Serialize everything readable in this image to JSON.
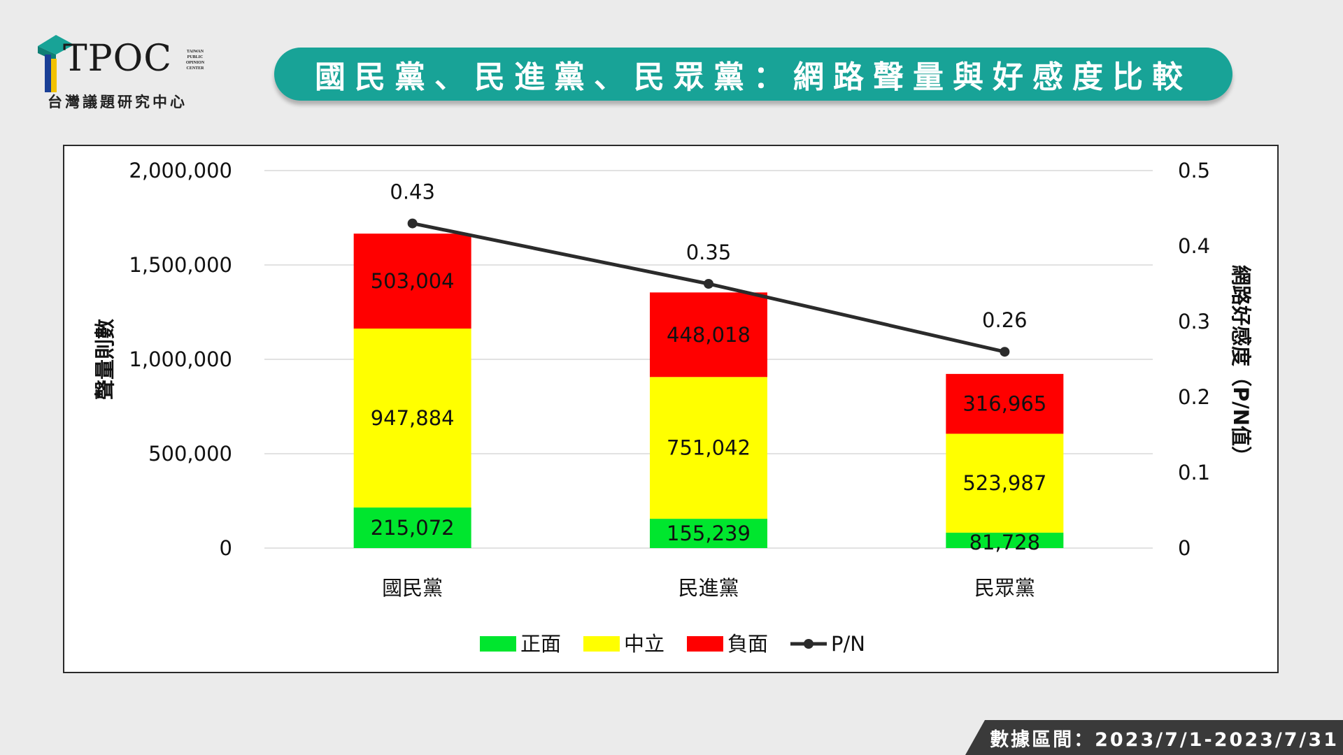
{
  "header": {
    "logo_text": "TPOC",
    "logo_small_lines": [
      "TAIWAN",
      "PUBLIC",
      "OPINION",
      "CENTER"
    ],
    "logo_subtitle": "台灣議題研究中心",
    "title": "國民黨、民進黨、民眾黨：網路聲量與好感度比較"
  },
  "footer": {
    "date_range": "數據區間：2023/7/1-2023/7/31"
  },
  "colors": {
    "positive": "#00e62e",
    "neutral": "#ffff00",
    "negative": "#ff0000",
    "line": "#2b2b2b",
    "banner": "#18a397"
  },
  "chart_data": {
    "type": "bar",
    "stacked": true,
    "categories": [
      "國民黨",
      "民進黨",
      "民眾黨"
    ],
    "series": [
      {
        "name": "正面",
        "values": [
          215072,
          155239,
          81728
        ],
        "value_labels": [
          "215,072",
          "155,239",
          "81,728"
        ]
      },
      {
        "name": "中立",
        "values": [
          947884,
          751042,
          523987
        ],
        "value_labels": [
          "947,884",
          "751,042",
          "523,987"
        ]
      },
      {
        "name": "負面",
        "values": [
          503004,
          448018,
          316965
        ],
        "value_labels": [
          "503,004",
          "448,018",
          "316,965"
        ]
      }
    ],
    "line_series": {
      "name": "P/N",
      "values": [
        0.43,
        0.35,
        0.26
      ],
      "value_labels": [
        "0.43",
        "0.35",
        "0.26"
      ],
      "axis": "right"
    },
    "ylabel": "聲量則數",
    "ylim": [
      0,
      2000000
    ],
    "yticks": [
      "0",
      "500,000",
      "1,000,000",
      "1,500,000",
      "2,000,000"
    ],
    "ytick_values": [
      0,
      500000,
      1000000,
      1500000,
      2000000
    ],
    "y2label": "網路好感度（P/N值）",
    "y2lim": [
      0,
      0.5
    ],
    "y2ticks": [
      "0",
      "0.1",
      "0.2",
      "0.3",
      "0.4",
      "0.5"
    ],
    "y2tick_values": [
      0,
      0.1,
      0.2,
      0.3,
      0.4,
      0.5
    ],
    "grid": true,
    "legend_position": "bottom"
  }
}
